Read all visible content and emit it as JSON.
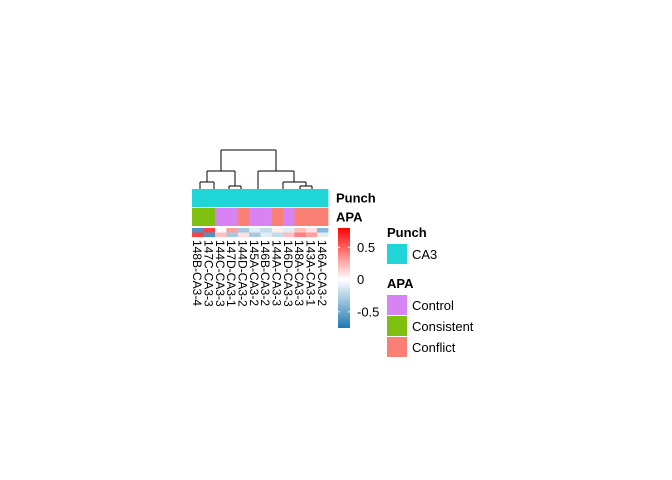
{
  "chart_data": {
    "type": "heatmap",
    "samples": [
      "146A-CA3-2",
      "143A-CA3-1",
      "148A-CA3-3",
      "146D-CA3-3",
      "144A-CA3-3",
      "146B-CA3-2",
      "145A-CA3-2",
      "144D-CA3-2",
      "147D-CA3-1",
      "144C-CA3-3",
      "147C-CA3-3",
      "148B-CA3-4"
    ],
    "annotation_rows": [
      {
        "name": "Punch",
        "values": [
          "CA3",
          "CA3",
          "CA3",
          "CA3",
          "CA3",
          "CA3",
          "CA3",
          "CA3",
          "CA3",
          "CA3",
          "CA3",
          "CA3"
        ]
      },
      {
        "name": "APA",
        "values": [
          "Conflict",
          "Conflict",
          "Conflict",
          "Control",
          "Conflict",
          "Control",
          "Control",
          "Conflict",
          "Control",
          "Control",
          "Consistent",
          "Consistent"
        ]
      }
    ],
    "heatmap_rows": [
      [
        -0.4,
        0.1,
        0.2,
        -0.1,
        0.05,
        -0.2,
        -0.1,
        -0.3,
        0.3,
        0.0,
        0.6,
        -0.6
      ],
      [
        -0.1,
        0.3,
        0.4,
        0.2,
        -0.2,
        -0.1,
        -0.3,
        0.1,
        -0.3,
        0.2,
        -0.6,
        0.6
      ]
    ],
    "color_scale": {
      "ticks": [
        0.5,
        0,
        -0.5
      ],
      "tick_labels": [
        "0.5",
        "0",
        "-0.5"
      ],
      "min": -0.75,
      "max": 0.8,
      "low_color": "#1f78b4",
      "mid_color": "#ffffff",
      "high_color": "#ff0000"
    },
    "dendrogram": "column-clustered",
    "legends": [
      {
        "title": "Punch",
        "items": [
          {
            "label": "CA3",
            "color": "#1fd5d8"
          }
        ]
      },
      {
        "title": "APA",
        "items": [
          {
            "label": "Control",
            "color": "#d883f3"
          },
          {
            "label": "Consistent",
            "color": "#7fbf0f"
          },
          {
            "label": "Conflict",
            "color": "#fa7f74"
          }
        ]
      }
    ],
    "annotation_colors": {
      "Punch": {
        "CA3": "#1fd5d8"
      },
      "APA": {
        "Control": "#d883f3",
        "Consistent": "#7fbf0f",
        "Conflict": "#fa7f74"
      }
    }
  }
}
